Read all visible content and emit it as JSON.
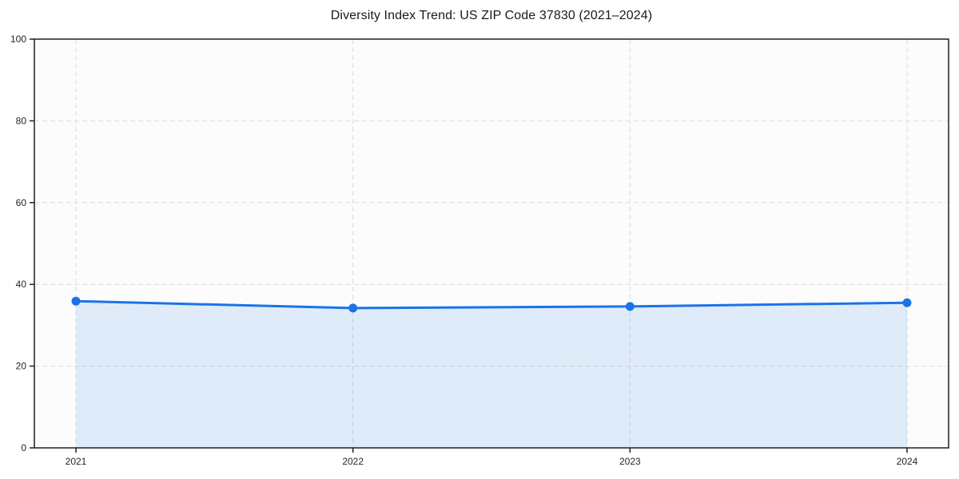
{
  "chart_data": {
    "type": "area",
    "title": "Diversity Index Trend: US ZIP Code 37830 (2021–2024)",
    "categories": [
      "2021",
      "2022",
      "2023",
      "2024"
    ],
    "series": [
      {
        "name": "Diversity Index",
        "values": [
          35.9,
          34.2,
          34.6,
          35.5
        ]
      }
    ],
    "xlabel": "",
    "ylabel": "",
    "ylim": [
      0,
      100
    ],
    "yticks": [
      0,
      20,
      40,
      60,
      80,
      100
    ],
    "grid": true,
    "grid_style": "dashed",
    "legend": false,
    "legend_position": "none",
    "marker": "circle"
  },
  "colors": {
    "line": "#1a73e8",
    "fill": "#1a73e8",
    "fill_opacity": 0.12,
    "grid": "#dcdcdc",
    "spine": "#1f1f1f",
    "tick_label": "#262626",
    "plot_bg": "#fcfcfd",
    "figure_bg": "#ffffff"
  }
}
